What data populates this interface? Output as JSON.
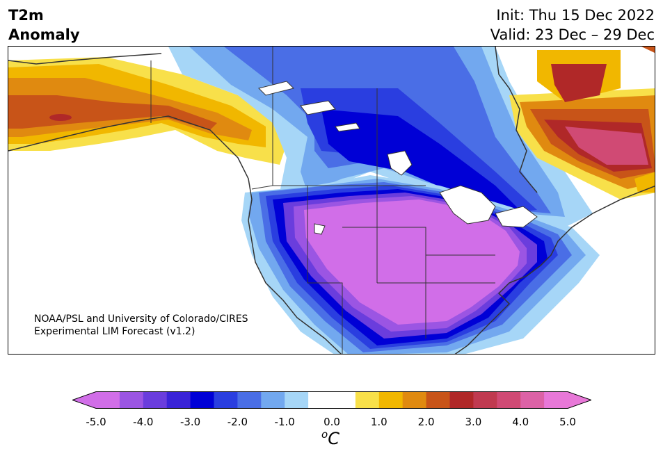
{
  "title": {
    "line1": "T2m",
    "line2": "Anomaly"
  },
  "dates": {
    "init": "Init: Thu 15 Dec 2022",
    "valid": "Valid: 23 Dec – 29 Dec"
  },
  "credit": {
    "line1": "NOAA/PSL and University of Colorado/CIRES",
    "line2": "Experimental LIM Forecast (v1.2)"
  },
  "colorbar": {
    "unit_base": "C",
    "unit_sup": "o",
    "ticks": [
      "-5.0",
      "-4.0",
      "-3.0",
      "-2.0",
      "-1.0",
      "0.0",
      "1.0",
      "2.0",
      "3.0",
      "4.0",
      "5.0"
    ],
    "colors": [
      "#d16ee8",
      "#9b55e3",
      "#6a3ddd",
      "#3a23d8",
      "#0000d6",
      "#2a3ee0",
      "#4a6ee6",
      "#72a8ef",
      "#a6d6f7",
      "#ffffff",
      "#ffffff",
      "#f8e04a",
      "#f1b700",
      "#e08a10",
      "#c85418",
      "#b02828",
      "#c03a50",
      "#d04a74",
      "#dc62a6",
      "#e878d8"
    ]
  },
  "anomaly_colors": {
    "cold_extreme": "#d16ee8",
    "cold_strong": "#0000d6",
    "cold_moderate": "#4a6ee6",
    "cold_weak": "#a6d6f7",
    "warm_weak": "#f8e04a",
    "warm_moderate": "#f1b700",
    "warm_strong": "#c85418",
    "warm_extreme": "#dc62a6"
  }
}
